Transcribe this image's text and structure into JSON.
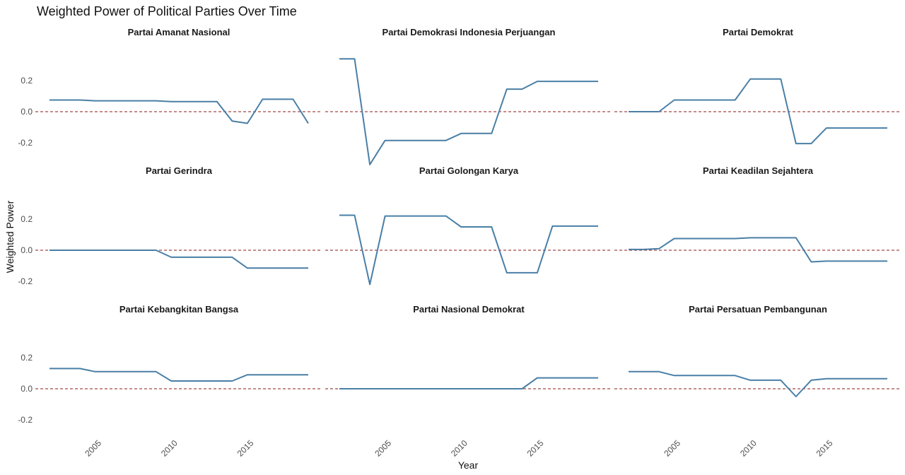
{
  "chart_data": {
    "type": "line",
    "title": "Weighted Power of Political Parties Over Time",
    "xlabel": "Year",
    "ylabel": "Weighted Power",
    "xlim": [
      2002,
      2019
    ],
    "ylim": [
      -0.35,
      0.35
    ],
    "x_ticks": [
      "2005",
      "2010",
      "2015"
    ],
    "y_ticks": [
      "0.2",
      "0.0",
      "-0.2"
    ],
    "reference_line": {
      "y": 0,
      "style": "dashed",
      "color": "#8b1a1a"
    },
    "line_color": "#4a7fa6",
    "grid": false,
    "x": [
      2002,
      2003,
      2004,
      2005,
      2006,
      2007,
      2008,
      2009,
      2010,
      2011,
      2012,
      2013,
      2014,
      2015,
      2016,
      2017,
      2018,
      2019
    ],
    "series": [
      {
        "name": "Partai Amanat Nasional",
        "values": [
          0.075,
          0.075,
          0.075,
          0.07,
          0.07,
          0.07,
          0.07,
          0.07,
          0.065,
          0.065,
          0.065,
          0.065,
          -0.06,
          -0.075,
          0.08,
          0.08,
          0.08,
          -0.075
        ]
      },
      {
        "name": "Partai Demokrasi Indonesia Perjuangan",
        "values": [
          0.34,
          0.34,
          -0.34,
          -0.185,
          -0.185,
          -0.185,
          -0.185,
          -0.185,
          -0.14,
          -0.14,
          -0.14,
          0.145,
          0.145,
          0.195,
          0.195,
          0.195,
          0.195,
          0.195
        ]
      },
      {
        "name": "Partai Demokrat",
        "values": [
          0.0,
          0.0,
          0.0,
          0.075,
          0.075,
          0.075,
          0.075,
          0.075,
          0.21,
          0.21,
          0.21,
          -0.205,
          -0.205,
          -0.105,
          -0.105,
          -0.105,
          -0.105,
          -0.105
        ]
      },
      {
        "name": "Partai Gerindra",
        "values": [
          0.0,
          0.0,
          0.0,
          0.0,
          0.0,
          0.0,
          0.0,
          0.0,
          -0.045,
          -0.045,
          -0.045,
          -0.045,
          -0.045,
          -0.115,
          -0.115,
          -0.115,
          -0.115,
          -0.115
        ]
      },
      {
        "name": "Partai Golongan Karya",
        "values": [
          0.225,
          0.225,
          -0.22,
          0.22,
          0.22,
          0.22,
          0.22,
          0.22,
          0.15,
          0.15,
          0.15,
          -0.145,
          -0.145,
          -0.145,
          0.155,
          0.155,
          0.155,
          0.155
        ]
      },
      {
        "name": "Partai Keadilan Sejahtera",
        "values": [
          0.005,
          0.005,
          0.01,
          0.075,
          0.075,
          0.075,
          0.075,
          0.075,
          0.08,
          0.08,
          0.08,
          0.08,
          -0.075,
          -0.07,
          -0.07,
          -0.07,
          -0.07,
          -0.07
        ]
      },
      {
        "name": "Partai Kebangkitan Bangsa",
        "values": [
          0.13,
          0.13,
          0.13,
          0.11,
          0.11,
          0.11,
          0.11,
          0.11,
          0.05,
          0.05,
          0.05,
          0.05,
          0.05,
          0.09,
          0.09,
          0.09,
          0.09,
          0.09
        ]
      },
      {
        "name": "Partai Nasional Demokrat",
        "values": [
          0.0,
          0.0,
          0.0,
          0.0,
          0.0,
          0.0,
          0.0,
          0.0,
          0.0,
          0.0,
          0.0,
          0.0,
          0.0,
          0.07,
          0.07,
          0.07,
          0.07,
          0.07
        ]
      },
      {
        "name": "Partai Persatuan Pembangunan",
        "values": [
          0.11,
          0.11,
          0.11,
          0.085,
          0.085,
          0.085,
          0.085,
          0.085,
          0.055,
          0.055,
          0.055,
          -0.05,
          0.055,
          0.065,
          0.065,
          0.065,
          0.065,
          0.065
        ]
      }
    ]
  }
}
